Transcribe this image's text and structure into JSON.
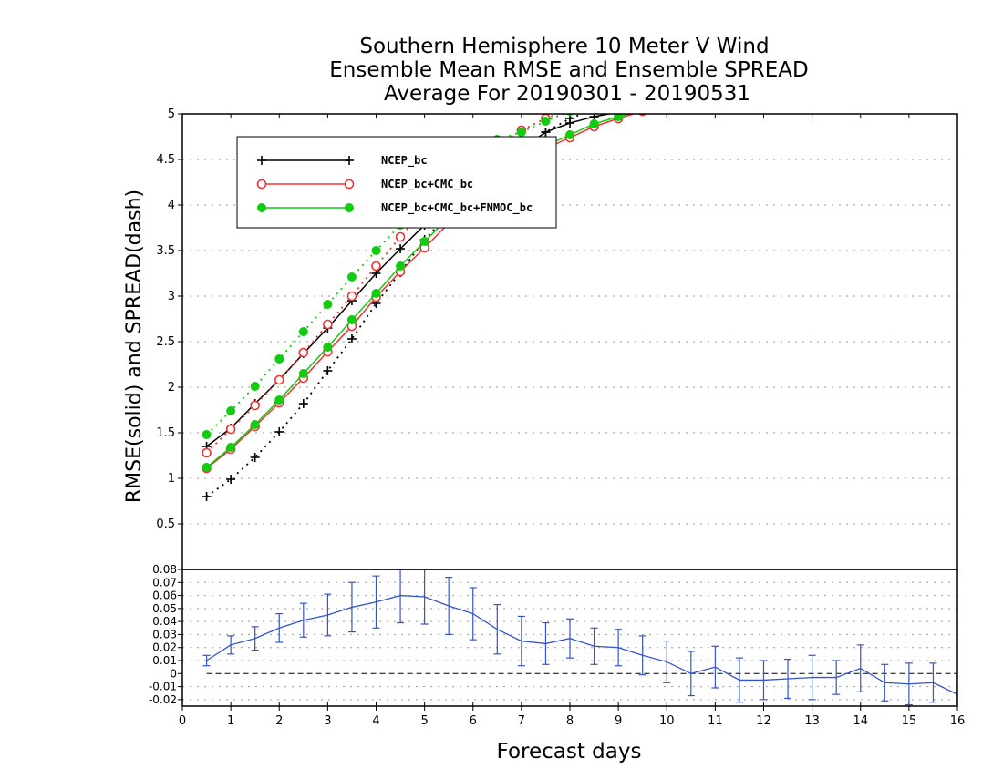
{
  "chart_data": [
    {
      "type": "line",
      "title_lines": [
        "Southern Hemisphere 10 Meter V Wind",
        "Ensemble Mean RMSE and Ensemble SPREAD",
        "Average For 20190301 - 20190531"
      ],
      "ylabel": "RMSE(solid) and SPREAD(dash)",
      "xlim": [
        0,
        16
      ],
      "ylim": [
        0,
        5
      ],
      "yticks": [
        "0.5",
        "1",
        "1.5",
        "2",
        "2.5",
        "3",
        "3.5",
        "4",
        "4.5",
        "5"
      ],
      "grid": true,
      "legend_position": "top-left",
      "series": [
        {
          "name": "NCEP_bc",
          "color": "#000000",
          "marker": "plus",
          "x": [
            0.5,
            1,
            1.5,
            2,
            2.5,
            3,
            3.5,
            4,
            4.5,
            5,
            5.5,
            6,
            6.5,
            7,
            7.5,
            8,
            8.5,
            9,
            9.5
          ],
          "rmse": [
            1.35,
            1.55,
            1.82,
            2.08,
            2.37,
            2.65,
            2.95,
            3.25,
            3.52,
            3.78,
            4.02,
            4.25,
            4.45,
            4.62,
            4.8,
            4.9,
            4.97,
            5.02,
            5.08
          ],
          "spread": [
            0.8,
            0.99,
            1.23,
            1.51,
            1.82,
            2.18,
            2.53,
            2.92,
            3.26,
            3.62,
            3.9,
            4.15,
            4.4,
            4.6,
            4.8,
            4.95,
            5.05,
            5.12,
            5.18
          ]
        },
        {
          "name": "NCEP_bc+CMC_bc",
          "color": "#ee3333",
          "marker": "open-circle",
          "x": [
            0.5,
            1,
            1.5,
            2,
            2.5,
            3,
            3.5,
            4,
            4.5,
            5,
            5.5,
            6,
            6.5,
            7,
            7.5,
            8,
            8.5,
            9,
            9.5
          ],
          "rmse": [
            1.11,
            1.32,
            1.57,
            1.83,
            2.1,
            2.39,
            2.67,
            2.99,
            3.27,
            3.53,
            3.8,
            4.05,
            4.3,
            4.48,
            4.62,
            4.74,
            4.86,
            4.95,
            5.03
          ],
          "spread": [
            1.28,
            1.54,
            1.8,
            2.08,
            2.38,
            2.69,
            3.0,
            3.33,
            3.65,
            3.95,
            4.2,
            4.42,
            4.62,
            4.82,
            4.95,
            5.05,
            5.12,
            5.18,
            5.22
          ]
        },
        {
          "name": "NCEP_bc+CMC_bc+FNMOC_bc",
          "color": "#11cc11",
          "marker": "filled-circle",
          "x": [
            0.5,
            1,
            1.5,
            2,
            2.5,
            3,
            3.5,
            4,
            4.5,
            5,
            5.5,
            6,
            6.5,
            7,
            7.5,
            8,
            8.5,
            9,
            9.5
          ],
          "rmse": [
            1.12,
            1.34,
            1.59,
            1.86,
            2.15,
            2.44,
            2.74,
            3.03,
            3.33,
            3.6,
            3.86,
            4.1,
            4.34,
            4.52,
            4.65,
            4.77,
            4.89,
            4.97,
            5.04
          ],
          "spread": [
            1.48,
            1.74,
            2.01,
            2.31,
            2.61,
            2.91,
            3.21,
            3.5,
            3.78,
            4.05,
            4.3,
            4.52,
            4.72,
            4.8,
            4.92,
            5.03,
            5.1,
            5.16,
            5.2
          ]
        }
      ]
    },
    {
      "type": "line",
      "xlabel": "Forecast days",
      "xlim": [
        0,
        16
      ],
      "ylim": [
        -0.025,
        0.08
      ],
      "xticks": [
        "0",
        "1",
        "2",
        "3",
        "4",
        "5",
        "6",
        "7",
        "8",
        "9",
        "10",
        "11",
        "12",
        "13",
        "14",
        "15",
        "16"
      ],
      "yticks": [
        "-0.02",
        "-0.01",
        "0",
        "0.01",
        "0.02",
        "0.03",
        "0.04",
        "0.05",
        "0.06",
        "0.07",
        "0.08"
      ],
      "zero_line": true,
      "grid": true,
      "series": [
        {
          "color": "#3355cc",
          "error_bars": true,
          "x": [
            0.5,
            1,
            1.5,
            2,
            2.5,
            3,
            3.5,
            4,
            4.5,
            5,
            5.5,
            6,
            6.5,
            7,
            7.5,
            8,
            8.5,
            9,
            9.5,
            10,
            10.5,
            11,
            11.5,
            12,
            12.5,
            13,
            13.5,
            14,
            14.5,
            15,
            15.5,
            16
          ],
          "y": [
            0.01,
            0.022,
            0.027,
            0.035,
            0.041,
            0.045,
            0.051,
            0.055,
            0.06,
            0.059,
            0.052,
            0.046,
            0.034,
            0.025,
            0.023,
            0.027,
            0.021,
            0.02,
            0.014,
            0.009,
            0.0,
            0.005,
            -0.005,
            -0.005,
            -0.004,
            -0.003,
            -0.003,
            0.004,
            -0.007,
            -0.008,
            -0.007,
            -0.016
          ],
          "err": [
            0.004,
            0.007,
            0.009,
            0.011,
            0.013,
            0.016,
            0.019,
            0.02,
            0.021,
            0.021,
            0.022,
            0.02,
            0.019,
            0.019,
            0.016,
            0.015,
            0.014,
            0.014,
            0.015,
            0.016,
            0.017,
            0.016,
            0.017,
            0.015,
            0.015,
            0.017,
            0.013,
            0.018,
            0.014,
            0.016,
            0.015,
            0.016
          ]
        }
      ]
    }
  ]
}
